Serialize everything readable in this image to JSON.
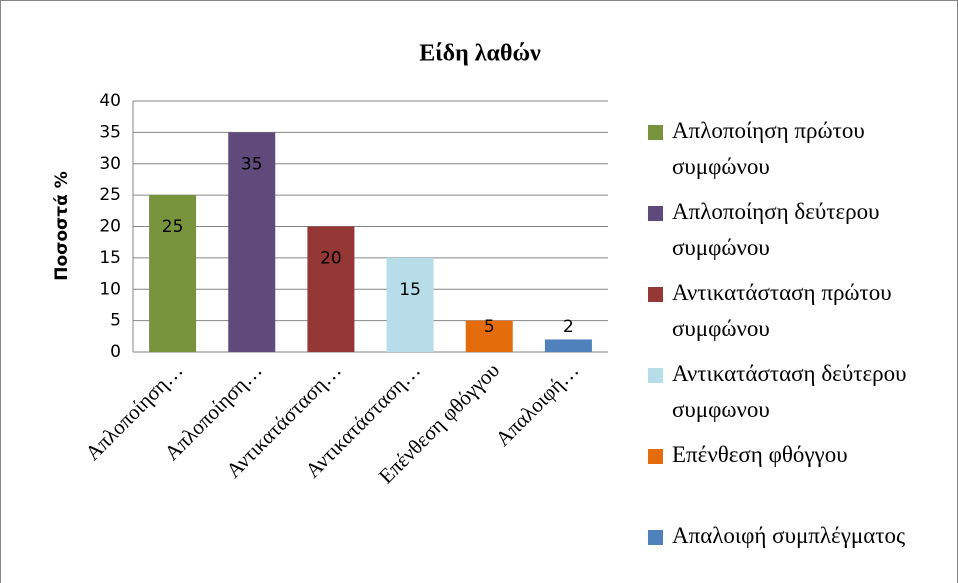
{
  "chart_data": {
    "type": "bar",
    "title": "Είδη λαθών",
    "y_label": "Ποσοστά %",
    "categories": [
      "Απλοποίηση…",
      "Απλοποίηση…",
      "Αντικατάσταση…",
      "Αντικατάσταση…",
      "Επένθεση φθόγγου",
      "Απαλοιφή…"
    ],
    "legend": [
      "Απλοποίηση πρώτου συμφώνου",
      "Απλοποίηση δεύτερου συμφώνου",
      "Αντικατάσταση πρώτου συμφώνου",
      "Αντικατάσταση δεύτερου συμφωνου",
      "Επένθεση φθόγγου",
      "Απαλοιφή συμπλέγματος"
    ],
    "values": [
      25,
      35,
      20,
      15,
      5,
      2
    ],
    "colors": [
      "#77933c",
      "#604a7b",
      "#953735",
      "#b7dee8",
      "#e46c0a",
      "#4f81bd"
    ],
    "ylim": [
      0,
      40
    ],
    "yticks": [
      0,
      5,
      10,
      15,
      20,
      25,
      30,
      35,
      40
    ],
    "grid": true,
    "legend_position": "right"
  }
}
